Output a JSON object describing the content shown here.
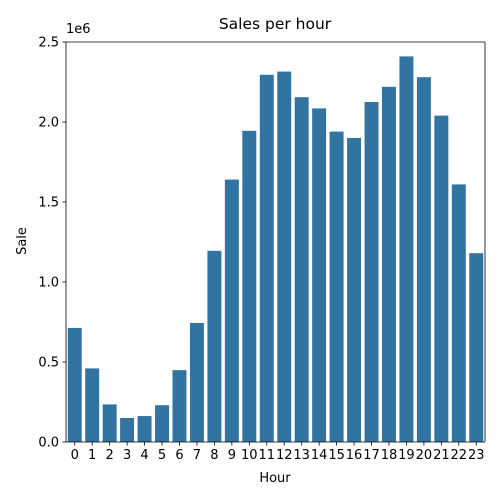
{
  "chart_data": {
    "type": "bar",
    "title": "Sales per hour",
    "xlabel": "Hour",
    "ylabel": "Sale",
    "offset_text": "1e6",
    "categories": [
      "0",
      "1",
      "2",
      "3",
      "4",
      "5",
      "6",
      "7",
      "8",
      "9",
      "10",
      "11",
      "12",
      "13",
      "14",
      "15",
      "16",
      "17",
      "18",
      "19",
      "20",
      "21",
      "22",
      "23"
    ],
    "values": [
      713000,
      460000,
      235000,
      150000,
      162000,
      230000,
      449000,
      744000,
      1195000,
      1640000,
      1945000,
      2295000,
      2315000,
      2155000,
      2085000,
      1940000,
      1900000,
      2125000,
      2220000,
      2410000,
      2280000,
      2040000,
      1610000,
      1180000
    ],
    "ylim": [
      0,
      2500000
    ],
    "yticks": [
      0,
      500000,
      1000000,
      1500000,
      2000000,
      2500000
    ],
    "ytick_labels": [
      "0.0",
      "0.5",
      "1.0",
      "1.5",
      "2.0",
      "2.5"
    ],
    "bar_color": "#3274a1",
    "grid": false,
    "legend": "none"
  }
}
